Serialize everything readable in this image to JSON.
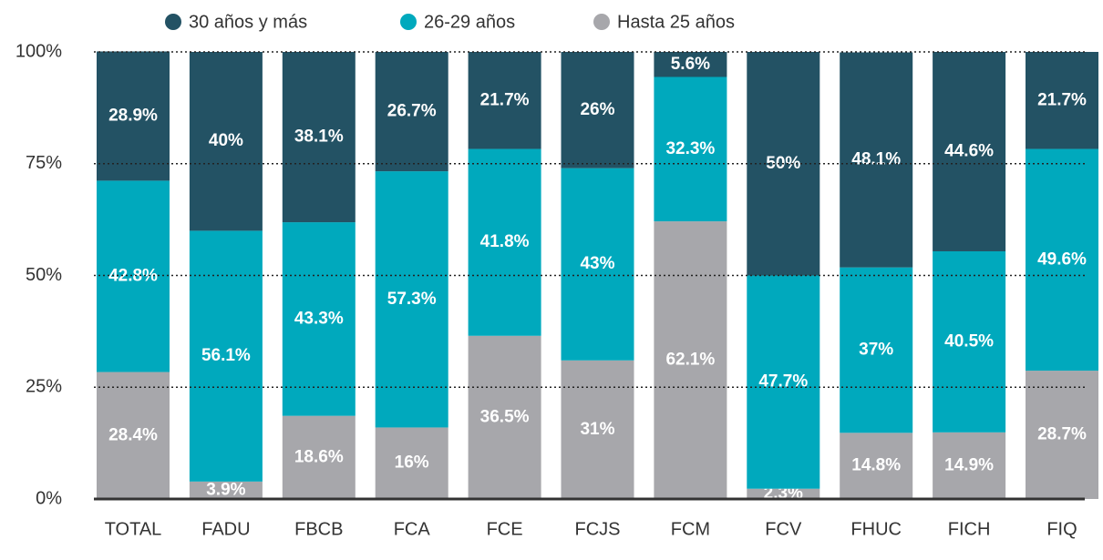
{
  "chart_data": {
    "type": "stacked_bar",
    "categories": [
      "TOTAL",
      "FADU",
      "FBCB",
      "FCA",
      "FCE",
      "FCJS",
      "FCM",
      "FCV",
      "FHUC",
      "FICH",
      "FIQ"
    ],
    "series": [
      {
        "name": "30 años y más",
        "color": "#235264",
        "values": [
          28.9,
          40,
          38.1,
          26.7,
          21.7,
          26,
          5.6,
          50,
          48.1,
          44.6,
          21.7
        ],
        "value_labels": [
          "28.9%",
          "40%",
          "38.1%",
          "26.7%",
          "21.7%",
          "26%",
          "5.6%",
          "50%",
          "48.1%",
          "44.6%",
          "21.7%"
        ]
      },
      {
        "name": "26-29 años",
        "color": "#00a9bd",
        "values": [
          42.8,
          56.1,
          43.3,
          57.3,
          41.8,
          43,
          32.3,
          47.7,
          37,
          40.5,
          49.6
        ],
        "value_labels": [
          "42.8%",
          "56.1%",
          "43.3%",
          "57.3%",
          "41.8%",
          "43%",
          "32.3%",
          "47.7%",
          "37%",
          "40.5%",
          "49.6%"
        ]
      },
      {
        "name": "Hasta 25 años",
        "color": "#a7a7ab",
        "values": [
          28.4,
          3.9,
          18.6,
          16,
          36.5,
          31,
          62.1,
          2.3,
          14.8,
          14.9,
          28.7
        ],
        "value_labels": [
          "28.4%",
          "3.9%",
          "18.6%",
          "16%",
          "36.5%",
          "31%",
          "62.1%",
          "2.3%",
          "14.8%",
          "14.9%",
          "28.7%"
        ]
      }
    ],
    "ylim": [
      0,
      100
    ],
    "yticks": [
      {
        "value": 0,
        "label": "0%"
      },
      {
        "value": 25,
        "label": "25%"
      },
      {
        "value": 50,
        "label": "50%"
      },
      {
        "value": 75,
        "label": "75%"
      },
      {
        "value": 100,
        "label": "100%"
      }
    ],
    "grid": true,
    "legend": "top"
  }
}
